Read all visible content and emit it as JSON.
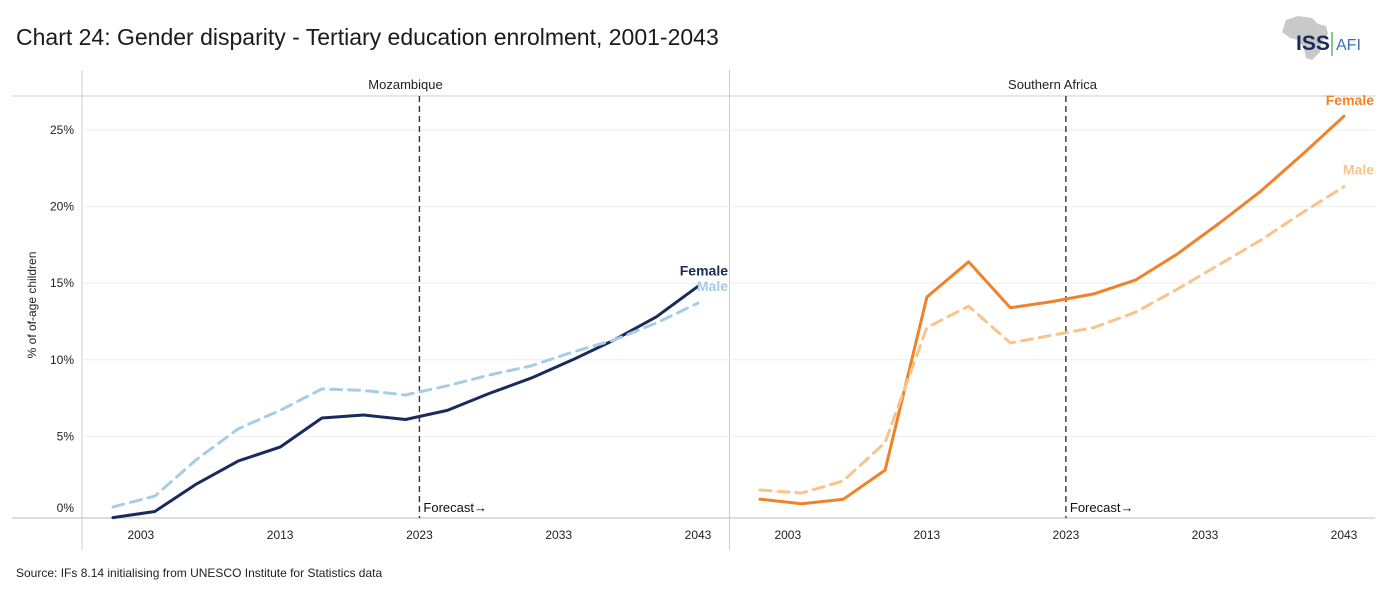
{
  "title": "Chart 24: Gender disparity - Tertiary education enrolment, 2001-2043",
  "source": "Source: IFs 8.14 initialising from UNESCO Institute for Statistics data",
  "logo": {
    "left": "ISS",
    "right": "AFI"
  },
  "colors": {
    "moz_female": "#1b2a5c",
    "moz_male": "#a8cce6",
    "sa_female": "#f0832a",
    "sa_male": "#f8c48c",
    "forecast_line": "#333333",
    "grid": "#eeeeee"
  },
  "chart_data": [
    {
      "type": "line",
      "panel": "Mozambique",
      "ylabel": "% of of-age children",
      "ylim": [
        0,
        27
      ],
      "xlim": [
        2001,
        2043
      ],
      "x_ticks": [
        2003,
        2013,
        2023,
        2033,
        2043
      ],
      "y_ticks": [
        0,
        5,
        10,
        15,
        20,
        25
      ],
      "y_tick_labels": [
        "0%",
        "5%",
        "10%",
        "15%",
        "20%",
        "25%"
      ],
      "forecast_start": 2023,
      "forecast_label": "Forecast→",
      "x": [
        2001,
        2004,
        2007,
        2010,
        2013,
        2016,
        2019,
        2022,
        2025,
        2028,
        2031,
        2034,
        2037,
        2040,
        2043
      ],
      "series": [
        {
          "name": "Female",
          "style": "solid",
          "color": "#1b2a5c",
          "values": [
            -0.3,
            0.1,
            1.9,
            3.4,
            4.3,
            6.2,
            6.4,
            6.1,
            6.7,
            7.8,
            8.8,
            10.0,
            11.3,
            12.8,
            14.8
          ]
        },
        {
          "name": "Male",
          "style": "dashed",
          "color": "#a8cce6",
          "values": [
            0.4,
            1.1,
            3.5,
            5.5,
            6.7,
            8.1,
            8.0,
            7.7,
            8.3,
            9.0,
            9.6,
            10.5,
            11.3,
            12.4,
            13.7
          ]
        }
      ]
    },
    {
      "type": "line",
      "panel": "Southern Africa",
      "ylim": [
        0,
        27
      ],
      "xlim": [
        2001,
        2043
      ],
      "x_ticks": [
        2003,
        2013,
        2023,
        2033,
        2043
      ],
      "forecast_start": 2023,
      "forecast_label": "Forecast→",
      "x": [
        2001,
        2004,
        2007,
        2010,
        2013,
        2016,
        2019,
        2022,
        2025,
        2028,
        2031,
        2034,
        2037,
        2040,
        2043
      ],
      "series": [
        {
          "name": "Female",
          "style": "solid",
          "color": "#f0832a",
          "values": [
            0.9,
            0.6,
            0.9,
            2.8,
            14.1,
            16.4,
            13.4,
            13.8,
            14.3,
            15.2,
            16.9,
            18.9,
            21.0,
            23.4,
            25.9
          ]
        },
        {
          "name": "Male",
          "style": "dashed",
          "color": "#f8c48c",
          "values": [
            1.5,
            1.3,
            2.1,
            4.6,
            12.1,
            13.5,
            11.1,
            11.6,
            12.1,
            13.1,
            14.6,
            16.2,
            17.8,
            19.6,
            21.3
          ]
        }
      ]
    }
  ]
}
